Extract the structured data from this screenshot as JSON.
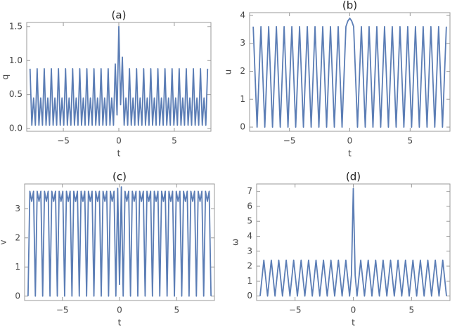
{
  "chart_data": [
    {
      "type": "line",
      "title": "(a)",
      "x_label": "t",
      "y_label": "q",
      "x": [
        -8,
        -7.84,
        -7.68,
        -7.52,
        -7.36,
        -7.2,
        -7.04,
        -6.88,
        -6.72,
        -6.56,
        -6.4,
        -6.24,
        -6.08,
        -5.92,
        -5.76,
        -5.6,
        -5.44,
        -5.28,
        -5.12,
        -4.96,
        -4.8,
        -4.64,
        -4.48,
        -4.32,
        -4.16,
        -4,
        -3.84,
        -3.68,
        -3.52,
        -3.36,
        -3.2,
        -3.04,
        -2.88,
        -2.72,
        -2.56,
        -2.4,
        -2.24,
        -2.08,
        -1.92,
        -1.76,
        -1.6,
        -1.44,
        -1.28,
        -1.12,
        -0.96,
        -0.8,
        -0.64,
        -0.48,
        -0.32,
        -0.16,
        0,
        0.16,
        0.32,
        0.48,
        0.64,
        0.8,
        0.96,
        1.12,
        1.28,
        1.44,
        1.6,
        1.76,
        1.92,
        2.08,
        2.24,
        2.4,
        2.56,
        2.72,
        2.88,
        3.04,
        3.2,
        3.36,
        3.52,
        3.68,
        3.84,
        4,
        4.16,
        4.32,
        4.48,
        4.64,
        4.8,
        4.96,
        5.12,
        5.28,
        5.44,
        5.6,
        5.76,
        5.92,
        6.08,
        6.24,
        6.4,
        6.56,
        6.72,
        6.88,
        7.04,
        7.2,
        7.36,
        7.52,
        7.68,
        7.84,
        8
      ],
      "series": [
        {
          "name": "q",
          "color": "#5b7db5",
          "values": [
            0.88,
            0.05,
            0.45,
            0.05,
            0.88,
            0.05,
            0.45,
            0.05,
            0.88,
            0.05,
            0.45,
            0.05,
            0.88,
            0.05,
            0.45,
            0.05,
            0.88,
            0.05,
            0.45,
            0.05,
            0.88,
            0.05,
            0.45,
            0.05,
            0.88,
            0.05,
            0.45,
            0.05,
            0.88,
            0.05,
            0.45,
            0.05,
            0.88,
            0.05,
            0.45,
            0.05,
            0.88,
            0.05,
            0.45,
            0.05,
            0.88,
            0.05,
            0.45,
            0.05,
            0.88,
            0.05,
            0.45,
            0.05,
            0.95,
            0.2,
            1.5,
            0.35,
            1.05,
            0.05,
            0.45,
            0.05,
            0.88,
            0.05,
            0.45,
            0.05,
            0.88,
            0.05,
            0.45,
            0.05,
            0.88,
            0.05,
            0.45,
            0.05,
            0.88,
            0.05,
            0.45,
            0.05,
            0.88,
            0.05,
            0.45,
            0.05,
            0.88,
            0.05,
            0.45,
            0.05,
            0.88,
            0.05,
            0.45,
            0.05,
            0.88,
            0.05,
            0.45,
            0.05,
            0.88,
            0.05,
            0.45,
            0.05,
            0.88,
            0.05,
            0.45,
            0.05,
            0.88,
            0.05,
            0.45,
            0.05,
            0.88
          ]
        }
      ],
      "xlim": [
        -8.3,
        8.3
      ],
      "xticks": [
        {
          "value": -5,
          "label": "−5"
        },
        0,
        5
      ],
      "ylim": [
        -0.04,
        1.56
      ],
      "yticks": [
        {
          "value": 0,
          "label": "0.0"
        },
        {
          "value": 0.5,
          "label": "0.5"
        },
        {
          "value": 1,
          "label": "1.0"
        },
        {
          "value": 1.5,
          "label": "1.5"
        }
      ]
    },
    {
      "type": "line",
      "title": "(b)",
      "x_label": "t",
      "y_label": "u",
      "x": [
        -8,
        -7.84,
        -7.68,
        -7.52,
        -7.36,
        -7.2,
        -7.04,
        -6.88,
        -6.72,
        -6.56,
        -6.4,
        -6.24,
        -6.08,
        -5.92,
        -5.76,
        -5.6,
        -5.44,
        -5.28,
        -5.12,
        -4.96,
        -4.8,
        -4.64,
        -4.48,
        -4.32,
        -4.16,
        -4,
        -3.84,
        -3.68,
        -3.52,
        -3.36,
        -3.2,
        -3.04,
        -2.88,
        -2.72,
        -2.56,
        -2.4,
        -2.24,
        -2.08,
        -1.92,
        -1.76,
        -1.6,
        -1.44,
        -1.28,
        -1.12,
        -0.96,
        -0.8,
        -0.64,
        -0.48,
        -0.32,
        -0.16,
        0,
        0.16,
        0.32,
        0.48,
        0.64,
        0.8,
        0.96,
        1.12,
        1.28,
        1.44,
        1.6,
        1.76,
        1.92,
        2.08,
        2.24,
        2.4,
        2.56,
        2.72,
        2.88,
        3.04,
        3.2,
        3.36,
        3.52,
        3.68,
        3.84,
        4,
        4.16,
        4.32,
        4.48,
        4.64,
        4.8,
        4.96,
        5.12,
        5.28,
        5.44,
        5.6,
        5.76,
        5.92,
        6.08,
        6.24,
        6.4,
        6.56,
        6.72,
        6.88,
        7.04,
        7.2,
        7.36,
        7.52,
        7.68,
        7.84,
        8
      ],
      "series": [
        {
          "name": "u",
          "color": "#5b7db5",
          "values": [
            3.6,
            1.8,
            0,
            1.8,
            3.6,
            1.8,
            0,
            1.8,
            3.6,
            1.8,
            0,
            1.8,
            3.6,
            1.8,
            0,
            1.8,
            3.6,
            1.8,
            0,
            1.8,
            3.6,
            1.8,
            0,
            1.8,
            3.6,
            1.8,
            0,
            1.8,
            3.6,
            1.8,
            0,
            1.8,
            3.6,
            1.8,
            0,
            1.8,
            3.6,
            1.8,
            0,
            1.8,
            3.6,
            1.8,
            0,
            1.8,
            3.6,
            1.8,
            0,
            1.8,
            3.6,
            3.8,
            3.9,
            3.8,
            3.6,
            1.8,
            0,
            1.8,
            3.6,
            1.8,
            0,
            1.8,
            3.6,
            1.8,
            0,
            1.8,
            3.6,
            1.8,
            0,
            1.8,
            3.6,
            1.8,
            0,
            1.8,
            3.6,
            1.8,
            0,
            1.8,
            3.6,
            1.8,
            0,
            1.8,
            3.6,
            1.8,
            0,
            1.8,
            3.6,
            1.8,
            0,
            1.8,
            3.6,
            1.8,
            0,
            1.8,
            3.6,
            1.8,
            0,
            1.8,
            3.6,
            1.8,
            0,
            1.8,
            3.6
          ]
        }
      ],
      "xlim": [
        -8.3,
        8.3
      ],
      "xticks": [
        {
          "value": -5,
          "label": "−5"
        },
        0,
        5
      ],
      "ylim": [
        -0.15,
        4.1
      ],
      "yticks": [
        0,
        1,
        2,
        3,
        4
      ]
    },
    {
      "type": "line",
      "title": "(c)",
      "x_label": "t",
      "y_label": "v",
      "x": [
        -8,
        -7.84,
        -7.68,
        -7.52,
        -7.36,
        -7.2,
        -7.04,
        -6.88,
        -6.72,
        -6.56,
        -6.4,
        -6.24,
        -6.08,
        -5.92,
        -5.76,
        -5.6,
        -5.44,
        -5.28,
        -5.12,
        -4.96,
        -4.8,
        -4.64,
        -4.48,
        -4.32,
        -4.16,
        -4,
        -3.84,
        -3.68,
        -3.52,
        -3.36,
        -3.2,
        -3.04,
        -2.88,
        -2.72,
        -2.56,
        -2.4,
        -2.24,
        -2.08,
        -1.92,
        -1.76,
        -1.6,
        -1.44,
        -1.28,
        -1.12,
        -0.96,
        -0.8,
        -0.64,
        -0.48,
        -0.32,
        -0.16,
        0,
        0.16,
        0.32,
        0.48,
        0.64,
        0.8,
        0.96,
        1.12,
        1.28,
        1.44,
        1.6,
        1.76,
        1.92,
        2.08,
        2.24,
        2.4,
        2.56,
        2.72,
        2.88,
        3.04,
        3.2,
        3.36,
        3.52,
        3.68,
        3.84,
        4,
        4.16,
        4.32,
        4.48,
        4.64,
        4.8,
        4.96,
        5.12,
        5.28,
        5.44,
        5.6,
        5.76,
        5.92,
        6.08,
        6.24,
        6.4,
        6.56,
        6.72,
        6.88,
        7.04,
        7.2,
        7.36,
        7.52,
        7.68,
        7.84,
        8
      ],
      "series": [
        {
          "name": "v",
          "color": "#5b7db5",
          "values": [
            0,
            3.6,
            3.25,
            3.6,
            0,
            3.6,
            3.25,
            3.6,
            0,
            3.6,
            3.25,
            3.6,
            0,
            3.6,
            3.25,
            3.6,
            0,
            3.6,
            3.25,
            3.6,
            0,
            3.6,
            3.25,
            3.6,
            0,
            3.6,
            3.25,
            3.6,
            0,
            3.6,
            3.25,
            3.6,
            0,
            3.6,
            3.25,
            3.6,
            0,
            3.6,
            3.25,
            3.6,
            0,
            3.6,
            3.25,
            3.6,
            0,
            3.6,
            3.25,
            3.6,
            0,
            3.7,
            0.4,
            3.75,
            0,
            3.6,
            3.25,
            3.6,
            0,
            3.6,
            3.25,
            3.6,
            0,
            3.6,
            3.25,
            3.6,
            0,
            3.6,
            3.25,
            3.6,
            0,
            3.6,
            3.25,
            3.6,
            0,
            3.6,
            3.25,
            3.6,
            0,
            3.6,
            3.25,
            3.6,
            0,
            3.6,
            3.25,
            3.6,
            0,
            3.6,
            3.25,
            3.6,
            0,
            3.6,
            3.25,
            3.6,
            0,
            3.6,
            3.25,
            3.6,
            0,
            3.6,
            3.25,
            3.6,
            0
          ]
        }
      ],
      "xlim": [
        -8.3,
        8.3
      ],
      "xticks": [
        {
          "value": -5,
          "label": "−5"
        },
        0,
        5
      ],
      "ylim": [
        -0.15,
        3.85
      ],
      "yticks": [
        0,
        1,
        2,
        3
      ]
    },
    {
      "type": "line",
      "title": "(d)",
      "x_label": "t",
      "y_label": "ω",
      "x": [
        -8,
        -7.84,
        -7.68,
        -7.52,
        -7.36,
        -7.2,
        -7.04,
        -6.88,
        -6.72,
        -6.56,
        -6.4,
        -6.24,
        -6.08,
        -5.92,
        -5.76,
        -5.6,
        -5.44,
        -5.28,
        -5.12,
        -4.96,
        -4.8,
        -4.64,
        -4.48,
        -4.32,
        -4.16,
        -4,
        -3.84,
        -3.68,
        -3.52,
        -3.36,
        -3.2,
        -3.04,
        -2.88,
        -2.72,
        -2.56,
        -2.4,
        -2.24,
        -2.08,
        -1.92,
        -1.76,
        -1.6,
        -1.44,
        -1.28,
        -1.12,
        -0.96,
        -0.8,
        -0.64,
        -0.48,
        -0.32,
        -0.16,
        0,
        0.16,
        0.32,
        0.48,
        0.64,
        0.8,
        0.96,
        1.12,
        1.28,
        1.44,
        1.6,
        1.76,
        1.92,
        2.08,
        2.24,
        2.4,
        2.56,
        2.72,
        2.88,
        3.04,
        3.2,
        3.36,
        3.52,
        3.68,
        3.84,
        4,
        4.16,
        4.32,
        4.48,
        4.64,
        4.8,
        4.96,
        5.12,
        5.28,
        5.44,
        5.6,
        5.76,
        5.92,
        6.08,
        6.24,
        6.4,
        6.56,
        6.72,
        6.88,
        7.04,
        7.2,
        7.36,
        7.52,
        7.68,
        7.84,
        8
      ],
      "series": [
        {
          "name": "ω",
          "color": "#5b7db5",
          "values": [
            0,
            1.2,
            2.4,
            1.2,
            0,
            1.2,
            2.4,
            1.2,
            0,
            1.2,
            2.4,
            1.2,
            0,
            1.2,
            2.4,
            1.2,
            0,
            1.2,
            2.4,
            1.2,
            0,
            1.2,
            2.4,
            1.2,
            0,
            1.2,
            2.4,
            1.2,
            0,
            1.2,
            2.4,
            1.2,
            0,
            1.2,
            2.4,
            1.2,
            0,
            1.2,
            2.4,
            1.2,
            0,
            1.2,
            2.4,
            1.2,
            0,
            1.2,
            2.4,
            1.2,
            0,
            1.4,
            7.2,
            1.4,
            0,
            1.2,
            2.4,
            1.2,
            0,
            1.2,
            2.4,
            1.2,
            0,
            1.2,
            2.4,
            1.2,
            0,
            1.2,
            2.4,
            1.2,
            0,
            1.2,
            2.4,
            1.2,
            0,
            1.2,
            2.4,
            1.2,
            0,
            1.2,
            2.4,
            1.2,
            0,
            1.2,
            2.4,
            1.2,
            0,
            1.2,
            2.4,
            1.2,
            0,
            1.2,
            2.4,
            1.2,
            0,
            1.2,
            2.4,
            1.2,
            0,
            1.2,
            2.4,
            1.2,
            0
          ]
        }
      ],
      "xlim": [
        -8.3,
        8.3
      ],
      "xticks": [
        {
          "value": -5,
          "label": "−5"
        },
        0,
        5
      ],
      "ylim": [
        -0.3,
        7.5
      ],
      "yticks": [
        0,
        1,
        2,
        3,
        4,
        5,
        6,
        7
      ]
    }
  ]
}
